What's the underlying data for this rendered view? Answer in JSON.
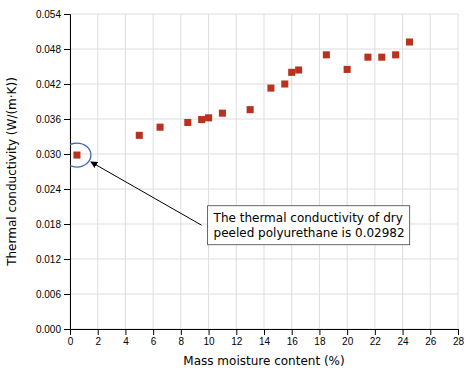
{
  "chart_data": {
    "type": "scatter",
    "x": [
      0.5,
      5.0,
      6.5,
      8.5,
      9.5,
      10.0,
      11.0,
      13.0,
      14.5,
      15.5,
      16.0,
      16.5,
      18.5,
      20.0,
      21.5,
      22.5,
      23.5,
      24.5
    ],
    "values": [
      0.02982,
      0.0332,
      0.0346,
      0.0354,
      0.0359,
      0.0362,
      0.037,
      0.0376,
      0.0413,
      0.042,
      0.044,
      0.0444,
      0.047,
      0.0445,
      0.0466,
      0.0466,
      0.047,
      0.0492
    ],
    "color": "#b83220",
    "marker": "square",
    "xlabel": "Mass moisture content (%)",
    "ylabel": "Thermal conductivity (W/(m·K))",
    "xlim": [
      0,
      28
    ],
    "ylim": [
      0.0,
      0.054
    ],
    "xticks": [
      0,
      2,
      4,
      6,
      8,
      10,
      12,
      14,
      16,
      18,
      20,
      22,
      24,
      26,
      28
    ],
    "yticks": [
      {
        "value": 0.0,
        "label": "0.000"
      },
      {
        "value": 0.006,
        "label": "0.006"
      },
      {
        "value": 0.012,
        "label": "0.012"
      },
      {
        "value": 0.018,
        "label": "0.018"
      },
      {
        "value": 0.024,
        "label": "0.024"
      },
      {
        "value": 0.03,
        "label": "0.030"
      },
      {
        "value": 0.036,
        "label": "0.036"
      },
      {
        "value": 0.042,
        "label": "0.042"
      },
      {
        "value": 0.048,
        "label": "0.048"
      },
      {
        "value": 0.054,
        "label": "0.054"
      }
    ],
    "grid": true,
    "annotations": [
      {
        "text": "The thermal conductivity of dry\npeeled polyurethane is 0.02982",
        "x": 10.0,
        "y": 0.021,
        "point": [
          0.5,
          0.02982
        ]
      }
    ]
  }
}
